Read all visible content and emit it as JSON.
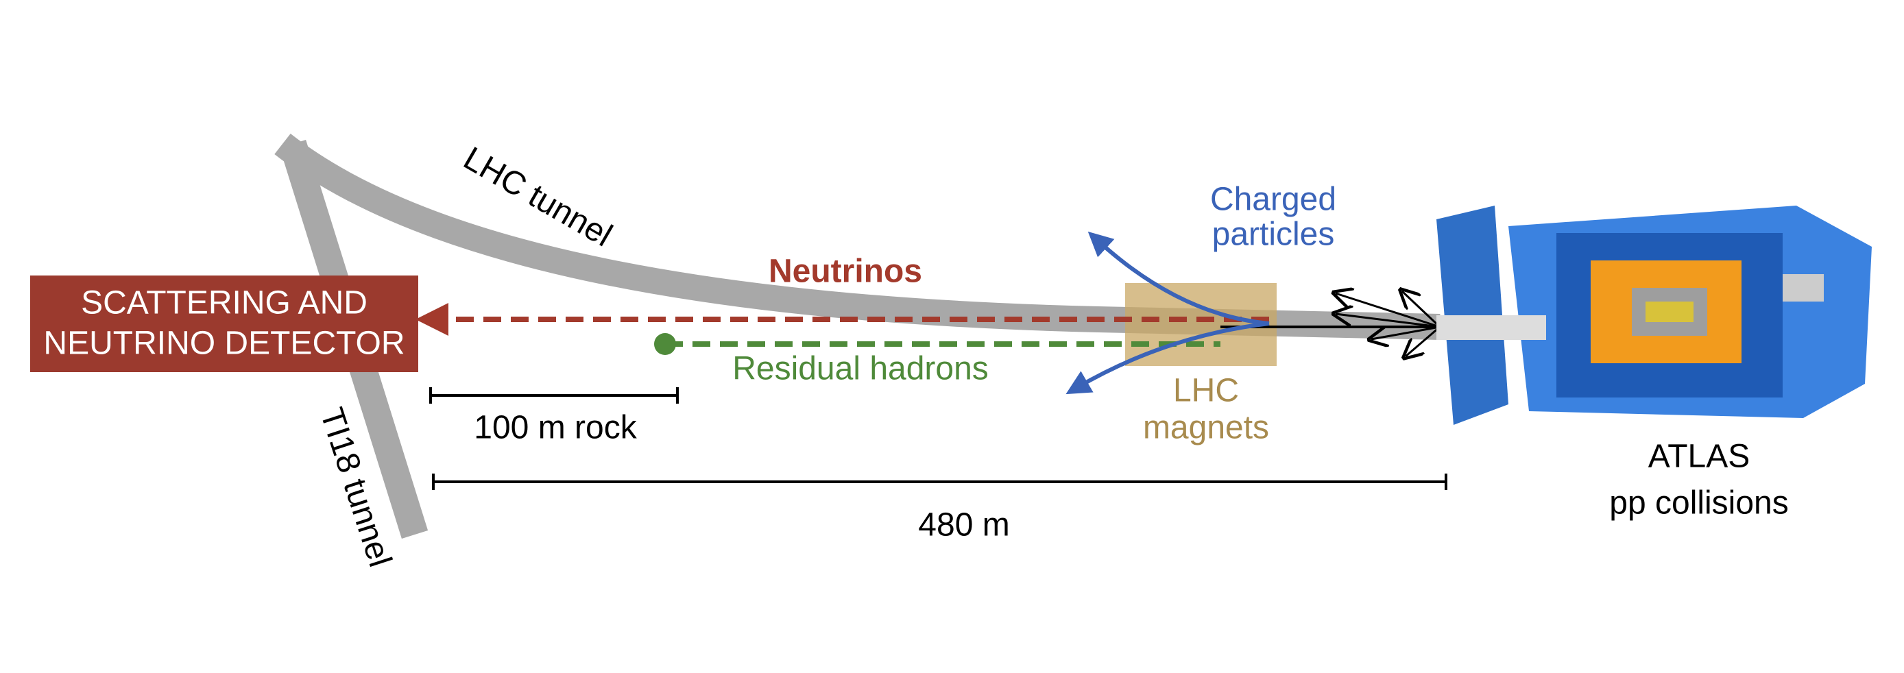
{
  "labels": {
    "lhc_tunnel": "LHC tunnel",
    "ti18_tunnel": "TI18 tunnel",
    "detector": [
      "SCATTERING AND",
      "NEUTRINO DETECTOR"
    ],
    "neutrinos": "Neutrinos",
    "residual_hadrons": "Residual hadrons",
    "charged_particles": [
      "Charged",
      "particles"
    ],
    "lhc_magnets": [
      "LHC",
      "magnets"
    ],
    "rock_scale": "100 m rock",
    "distance_scale": "480 m",
    "atlas": [
      "ATLAS",
      "pp collisions"
    ]
  }
}
